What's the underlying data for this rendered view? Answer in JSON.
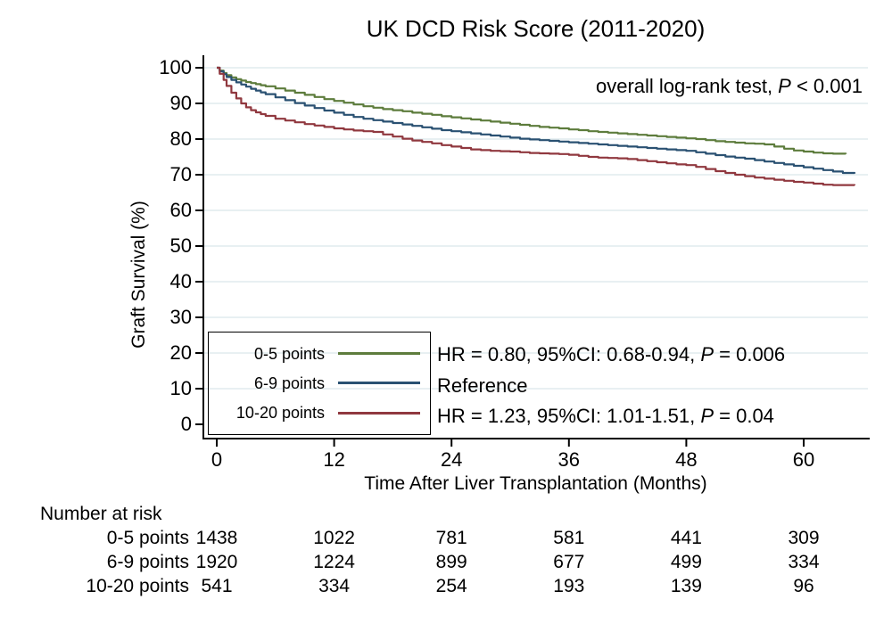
{
  "title": "UK DCD Risk Score (2011-2020)",
  "logrank_note": {
    "prefix": "overall log-rank test, ",
    "p": "P",
    "suffix": " < 0.001"
  },
  "axes": {
    "y_label": "Graft Survival (%)",
    "x_label": "Time After Liver Transplantation (Months)",
    "y_ticks": [
      0,
      10,
      20,
      30,
      40,
      50,
      60,
      70,
      80,
      90,
      100
    ],
    "x_ticks": [
      0,
      12,
      24,
      36,
      48,
      60
    ]
  },
  "legend": {
    "items": [
      {
        "label": "0-5 points",
        "color": "#5d7c3c"
      },
      {
        "label": "6-9 points",
        "color": "#2a5172"
      },
      {
        "label": "10-20 points",
        "color": "#90383f"
      }
    ]
  },
  "annotations": [
    {
      "prefix": "HR = 0.80, 95%CI: 0.68-0.94, ",
      "p": "P",
      "suffix": " = 0.006"
    },
    {
      "prefix": "Reference",
      "p": "",
      "suffix": ""
    },
    {
      "prefix": "HR = 1.23, 95%CI: 1.01-1.51, ",
      "p": "P",
      "suffix": " = 0.04"
    }
  ],
  "risk_table": {
    "header": "Number at risk",
    "time_points": [
      0,
      12,
      24,
      36,
      48,
      60
    ],
    "rows": [
      {
        "label": "0-5 points",
        "values": [
          "1438",
          "1022",
          "781",
          "581",
          "441",
          "309"
        ]
      },
      {
        "label": "6-9 points",
        "values": [
          "1920",
          "1224",
          "899",
          "677",
          "499",
          "334"
        ]
      },
      {
        "label": "10-20 points",
        "values": [
          "541",
          "334",
          "254",
          "193",
          "139",
          "96"
        ]
      }
    ]
  },
  "chart_data": {
    "type": "line",
    "subtype": "kaplan-meier-step",
    "title": "UK DCD Risk Score (2011-2020)",
    "xlabel": "Time After Liver Transplantation (Months)",
    "ylabel": "Graft Survival (%)",
    "xlim": [
      0,
      67
    ],
    "ylim": [
      0,
      100
    ],
    "x_ticks": [
      0,
      12,
      24,
      36,
      48,
      60
    ],
    "y_ticks": [
      0,
      10,
      20,
      30,
      40,
      50,
      60,
      70,
      80,
      90,
      100
    ],
    "grid": "horizontal-light",
    "grid_color": "#d9e6ea",
    "legend_position": "lower-left-box",
    "annotation_top_right": "overall log-rank test, P < 0.001",
    "series": [
      {
        "name": "0-5 points",
        "color": "#5d7c3c",
        "hr_note": "HR = 0.80, 95%CI: 0.68-0.94, P = 0.006",
        "points": [
          [
            0,
            100
          ],
          [
            0.3,
            99.2
          ],
          [
            0.7,
            98.5
          ],
          [
            1,
            97.9
          ],
          [
            1.5,
            97.3
          ],
          [
            2,
            96.8
          ],
          [
            2.5,
            96.4
          ],
          [
            3,
            96
          ],
          [
            3.5,
            95.7
          ],
          [
            4,
            95.4
          ],
          [
            4.5,
            95.1
          ],
          [
            5,
            94.8
          ],
          [
            6,
            94.2
          ],
          [
            7,
            93.6
          ],
          [
            8,
            93
          ],
          [
            9,
            92.4
          ],
          [
            10,
            91.8
          ],
          [
            11,
            91.2
          ],
          [
            12,
            90.7
          ],
          [
            13,
            90.2
          ],
          [
            14,
            89.7
          ],
          [
            15,
            89.2
          ],
          [
            16,
            88.8
          ],
          [
            17,
            88.4
          ],
          [
            18,
            88.1
          ],
          [
            19,
            87.8
          ],
          [
            20,
            87.4
          ],
          [
            21,
            87.1
          ],
          [
            22,
            86.8
          ],
          [
            23,
            86.4
          ],
          [
            24,
            86.1
          ],
          [
            25,
            85.8
          ],
          [
            26,
            85.5
          ],
          [
            27,
            85.2
          ],
          [
            28,
            84.9
          ],
          [
            29,
            84.6
          ],
          [
            30,
            84.3
          ],
          [
            31,
            84
          ],
          [
            32,
            83.7
          ],
          [
            33,
            83.4
          ],
          [
            34,
            83.2
          ],
          [
            35,
            83
          ],
          [
            36,
            82.7
          ],
          [
            37,
            82.5
          ],
          [
            38,
            82.2
          ],
          [
            39,
            82
          ],
          [
            40,
            81.8
          ],
          [
            41,
            81.6
          ],
          [
            42,
            81.4
          ],
          [
            43,
            81.2
          ],
          [
            44,
            81
          ],
          [
            45,
            80.8
          ],
          [
            46,
            80.6
          ],
          [
            47,
            80.4
          ],
          [
            48,
            80.2
          ],
          [
            49,
            80
          ],
          [
            50,
            79.7
          ],
          [
            51,
            79.4
          ],
          [
            52,
            79.2
          ],
          [
            53,
            79
          ],
          [
            54,
            78.8
          ],
          [
            55,
            78.7
          ],
          [
            56,
            78.5
          ],
          [
            57,
            77.9
          ],
          [
            58,
            77.3
          ],
          [
            59,
            76.8
          ],
          [
            60,
            76.5
          ],
          [
            61,
            76.2
          ],
          [
            62,
            76
          ],
          [
            63,
            75.9
          ],
          [
            64.3,
            75.8
          ]
        ]
      },
      {
        "name": "6-9 points",
        "color": "#2a5172",
        "hr_note": "Reference",
        "points": [
          [
            0,
            100
          ],
          [
            0.3,
            99
          ],
          [
            0.7,
            98.2
          ],
          [
            1,
            97.4
          ],
          [
            1.5,
            96.6
          ],
          [
            2,
            95.9
          ],
          [
            2.5,
            95.3
          ],
          [
            3,
            94.7
          ],
          [
            3.5,
            94.1
          ],
          [
            4,
            93.6
          ],
          [
            4.5,
            93.1
          ],
          [
            5,
            92.6
          ],
          [
            6,
            91.7
          ],
          [
            7,
            90.9
          ],
          [
            8,
            90.1
          ],
          [
            9,
            89.4
          ],
          [
            10,
            88.7
          ],
          [
            11,
            88
          ],
          [
            12,
            87.4
          ],
          [
            13,
            86.8
          ],
          [
            14,
            86.2
          ],
          [
            15,
            85.7
          ],
          [
            16,
            85.3
          ],
          [
            17,
            84.9
          ],
          [
            18,
            84.5
          ],
          [
            19,
            84.1
          ],
          [
            20,
            83.7
          ],
          [
            21,
            83.3
          ],
          [
            22,
            82.9
          ],
          [
            23,
            82.5
          ],
          [
            24,
            82.2
          ],
          [
            25,
            81.9
          ],
          [
            26,
            81.6
          ],
          [
            27,
            81.3
          ],
          [
            28,
            81
          ],
          [
            29,
            80.7
          ],
          [
            30,
            80.4
          ],
          [
            31,
            80.1
          ],
          [
            32,
            79.9
          ],
          [
            33,
            79.7
          ],
          [
            34,
            79.5
          ],
          [
            35,
            79.3
          ],
          [
            36,
            79.1
          ],
          [
            37,
            78.9
          ],
          [
            38,
            78.7
          ],
          [
            39,
            78.5
          ],
          [
            40,
            78.3
          ],
          [
            41,
            78.1
          ],
          [
            42,
            77.9
          ],
          [
            43,
            77.7
          ],
          [
            44,
            77.5
          ],
          [
            45,
            77.3
          ],
          [
            46,
            77.1
          ],
          [
            47,
            76.9
          ],
          [
            48,
            76.7
          ],
          [
            49,
            76.3
          ],
          [
            50,
            75.9
          ],
          [
            51,
            75.5
          ],
          [
            52,
            75.1
          ],
          [
            53,
            74.8
          ],
          [
            54,
            74.5
          ],
          [
            55,
            74.1
          ],
          [
            56,
            73.7
          ],
          [
            57,
            73.3
          ],
          [
            58,
            72.9
          ],
          [
            59,
            72.5
          ],
          [
            60,
            72.1
          ],
          [
            61,
            71.7
          ],
          [
            62,
            71.3
          ],
          [
            63,
            70.9
          ],
          [
            64,
            70.5
          ],
          [
            65.2,
            70.3
          ]
        ]
      },
      {
        "name": "10-20 points",
        "color": "#90383f",
        "hr_note": "HR = 1.23, 95%CI: 1.01-1.51, P = 0.04",
        "points": [
          [
            0,
            100
          ],
          [
            0.3,
            98.3
          ],
          [
            0.7,
            96.6
          ],
          [
            1,
            94.9
          ],
          [
            1.5,
            93
          ],
          [
            2,
            91.4
          ],
          [
            2.5,
            90
          ],
          [
            3,
            88.9
          ],
          [
            3.5,
            88.1
          ],
          [
            4,
            87.5
          ],
          [
            4.5,
            87
          ],
          [
            5,
            86.5
          ],
          [
            6,
            85.7
          ],
          [
            7,
            85.2
          ],
          [
            8,
            84.7
          ],
          [
            9,
            84.2
          ],
          [
            10,
            83.8
          ],
          [
            11,
            83.4
          ],
          [
            12,
            83
          ],
          [
            13,
            82.7
          ],
          [
            14,
            82.4
          ],
          [
            15,
            82.2
          ],
          [
            16,
            82
          ],
          [
            17,
            81.3
          ],
          [
            18,
            80.7
          ],
          [
            19,
            80.1
          ],
          [
            20,
            79.6
          ],
          [
            21,
            79.2
          ],
          [
            22,
            78.8
          ],
          [
            23,
            78.3
          ],
          [
            24,
            77.9
          ],
          [
            25,
            77.5
          ],
          [
            26,
            77.1
          ],
          [
            27,
            76.9
          ],
          [
            28,
            76.7
          ],
          [
            29,
            76.6
          ],
          [
            30,
            76.5
          ],
          [
            31,
            76.3
          ],
          [
            32,
            76.1
          ],
          [
            33,
            76
          ],
          [
            34,
            75.9
          ],
          [
            35,
            75.8
          ],
          [
            36,
            75.6
          ],
          [
            37,
            75.3
          ],
          [
            38,
            75
          ],
          [
            39,
            74.8
          ],
          [
            40,
            74.7
          ],
          [
            41,
            74.6
          ],
          [
            42,
            74.4
          ],
          [
            43,
            74.1
          ],
          [
            44,
            73.8
          ],
          [
            45,
            73.5
          ],
          [
            46,
            73.2
          ],
          [
            47,
            72.9
          ],
          [
            48,
            72.7
          ],
          [
            49,
            72.2
          ],
          [
            50,
            71.6
          ],
          [
            51,
            71
          ],
          [
            52,
            70.5
          ],
          [
            53,
            70
          ],
          [
            54,
            69.6
          ],
          [
            55,
            69.2
          ],
          [
            56,
            68.9
          ],
          [
            57,
            68.6
          ],
          [
            58,
            68.3
          ],
          [
            59,
            68
          ],
          [
            60,
            67.8
          ],
          [
            61,
            67.5
          ],
          [
            62,
            67.2
          ],
          [
            63,
            67.1
          ],
          [
            65.2,
            67
          ]
        ]
      }
    ]
  }
}
